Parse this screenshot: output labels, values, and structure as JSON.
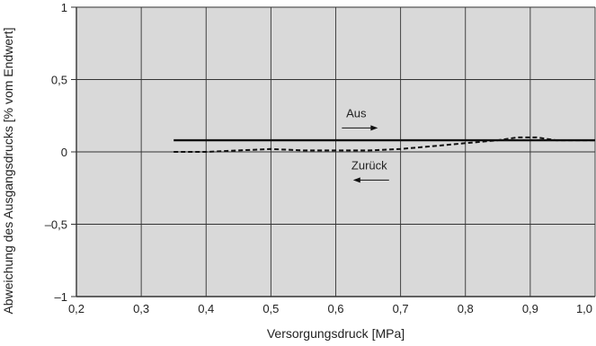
{
  "chart_data": {
    "type": "line",
    "title": "",
    "xlabel": "Versorgungsdruck [MPa]",
    "ylabel": "Abweichung des Ausgangsdrucks [% vom Endwert]",
    "xlim": [
      0.2,
      1.0
    ],
    "ylim": [
      -1,
      1
    ],
    "x_ticks": [
      0.2,
      0.3,
      0.4,
      0.5,
      0.6,
      0.7,
      0.8,
      0.9,
      1.0
    ],
    "x_tick_labels": [
      "0,2",
      "0,3",
      "0,4",
      "0,5",
      "0,6",
      "0,7",
      "0,8",
      "0,9",
      "1,0"
    ],
    "y_ticks": [
      -1,
      -0.5,
      0,
      0.5,
      1
    ],
    "y_tick_labels": [
      "–1",
      "–0,5",
      "0",
      "0,5",
      "1"
    ],
    "grid": true,
    "background": "#d9d9d9",
    "series": [
      {
        "name": "Aus",
        "style": "solid",
        "color": "#111111",
        "x": [
          0.35,
          0.5,
          0.6,
          0.7,
          0.8,
          0.9,
          1.0
        ],
        "y": [
          0.08,
          0.08,
          0.08,
          0.08,
          0.08,
          0.08,
          0.08
        ]
      },
      {
        "name": "Zurück",
        "style": "dashed",
        "color": "#111111",
        "x": [
          0.35,
          0.4,
          0.45,
          0.5,
          0.55,
          0.6,
          0.65,
          0.7,
          0.75,
          0.8,
          0.85,
          0.88,
          0.91,
          0.94,
          1.0
        ],
        "y": [
          0.0,
          0.0,
          0.01,
          0.02,
          0.01,
          0.01,
          0.01,
          0.02,
          0.04,
          0.06,
          0.08,
          0.1,
          0.1,
          0.08,
          0.08
        ]
      }
    ],
    "annotations": [
      {
        "text": "Aus",
        "x": 0.64,
        "y": 0.24,
        "arrow": "right"
      },
      {
        "text": "Zurück",
        "x": 0.66,
        "y": -0.12,
        "arrow": "left"
      }
    ]
  }
}
